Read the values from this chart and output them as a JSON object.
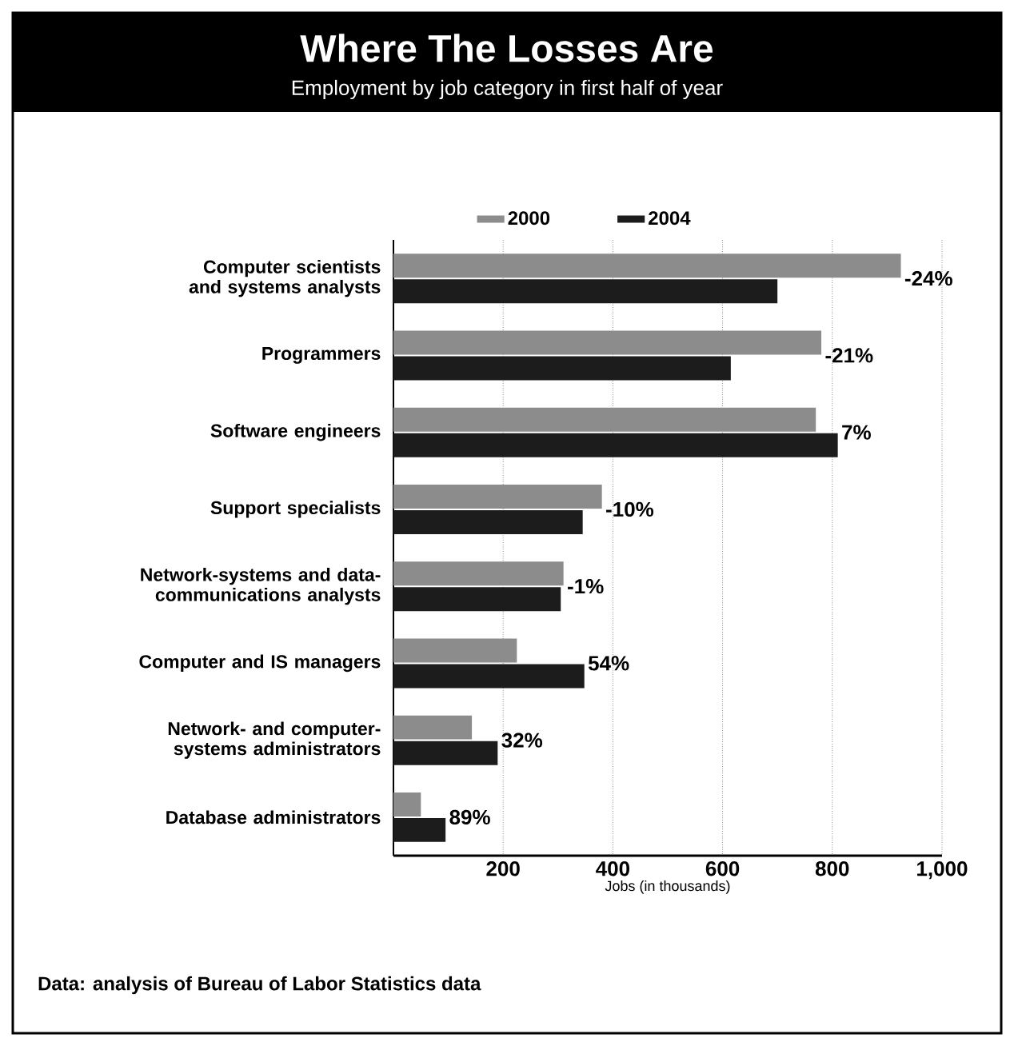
{
  "chart_data": {
    "type": "bar",
    "orientation": "horizontal",
    "title": "Where The Losses Are",
    "subtitle": "Employment by job category in first half of year",
    "xlabel": "Jobs (in thousands)",
    "categories": [
      "Computer scientists and systems analysts",
      "Programmers",
      "Software engineers",
      "Support specialists",
      "Network-systems and data-communications analysts",
      "Computer and IS managers",
      "Network- and computer-systems administrators",
      "Database administrators"
    ],
    "series": [
      {
        "name": "2000",
        "color": "#8c8c8c",
        "values": [
          925,
          780,
          770,
          380,
          310,
          225,
          143,
          50
        ]
      },
      {
        "name": "2004",
        "color": "#1c1c1c",
        "values": [
          700,
          615,
          810,
          345,
          305,
          348,
          190,
          95
        ]
      }
    ],
    "xlim": [
      0,
      1000
    ],
    "xticks": [
      200,
      400,
      600,
      800,
      {
        "value": 1000,
        "label": "1,000"
      }
    ],
    "grid": "x",
    "legend": "top",
    "annotations": [
      {
        "text": "-24%",
        "x": 925,
        "y": "Computer scientists and systems analysts"
      },
      {
        "text": "-21%",
        "x": 780,
        "y": "Programmers"
      },
      {
        "text": "7%",
        "x": 810,
        "y": "Software engineers"
      },
      {
        "text": "-10%",
        "x": 380,
        "y": "Support specialists"
      },
      {
        "text": "-1%",
        "x": 310,
        "y": "Network-systems and data-communications analysts"
      },
      {
        "text": "54%",
        "x": 348,
        "y": "Computer and IS managers"
      },
      {
        "text": "32%",
        "x": 190,
        "y": "Network- and computer-systems administrators"
      },
      {
        "text": "89%",
        "x": 95,
        "y": "Database administrators"
      },
      "Data: analysis of Bureau of Labor Statistics data"
    ]
  }
}
